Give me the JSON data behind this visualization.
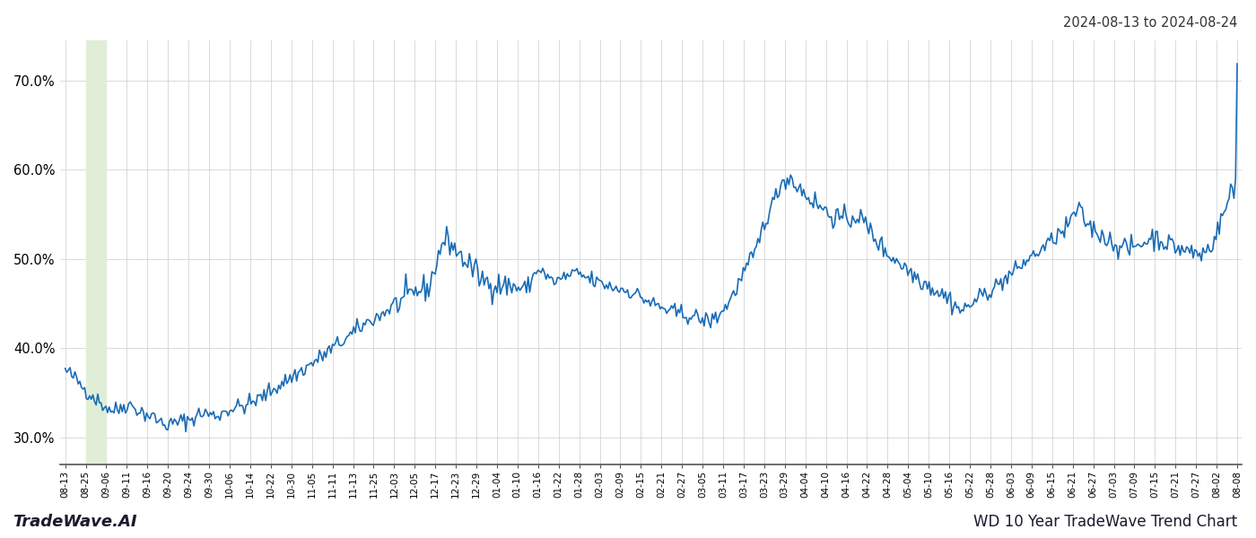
{
  "title_top_right": "2024-08-13 to 2024-08-24",
  "title_bottom_left": "TradeWave.AI",
  "title_bottom_right": "WD 10 Year TradeWave Trend Chart",
  "line_color": "#1a6cb5",
  "line_width": 1.2,
  "highlight_color": "#e0eed8",
  "ylim": [
    0.27,
    0.745
  ],
  "yticks": [
    0.3,
    0.4,
    0.5,
    0.6,
    0.7
  ],
  "ytick_labels": [
    "30.0%",
    "40.0%",
    "50.0%",
    "60.0%",
    "70.0%"
  ],
  "background_color": "#ffffff",
  "grid_color": "#cccccc",
  "x_labels": [
    "08-13",
    "08-25",
    "09-06",
    "09-11",
    "09-16",
    "09-20",
    "09-24",
    "09-30",
    "10-06",
    "10-14",
    "10-22",
    "10-30",
    "11-05",
    "11-11",
    "11-13",
    "11-25",
    "12-03",
    "12-05",
    "12-17",
    "12-23",
    "12-29",
    "01-04",
    "01-10",
    "01-16",
    "01-22",
    "01-28",
    "02-03",
    "02-09",
    "02-15",
    "02-21",
    "02-27",
    "03-05",
    "03-11",
    "03-17",
    "03-23",
    "03-29",
    "04-04",
    "04-10",
    "04-16",
    "04-22",
    "04-28",
    "05-04",
    "05-10",
    "05-16",
    "05-22",
    "05-28",
    "06-03",
    "06-09",
    "06-15",
    "06-21",
    "06-27",
    "07-03",
    "07-09",
    "07-15",
    "07-21",
    "07-27",
    "08-02",
    "08-08"
  ]
}
